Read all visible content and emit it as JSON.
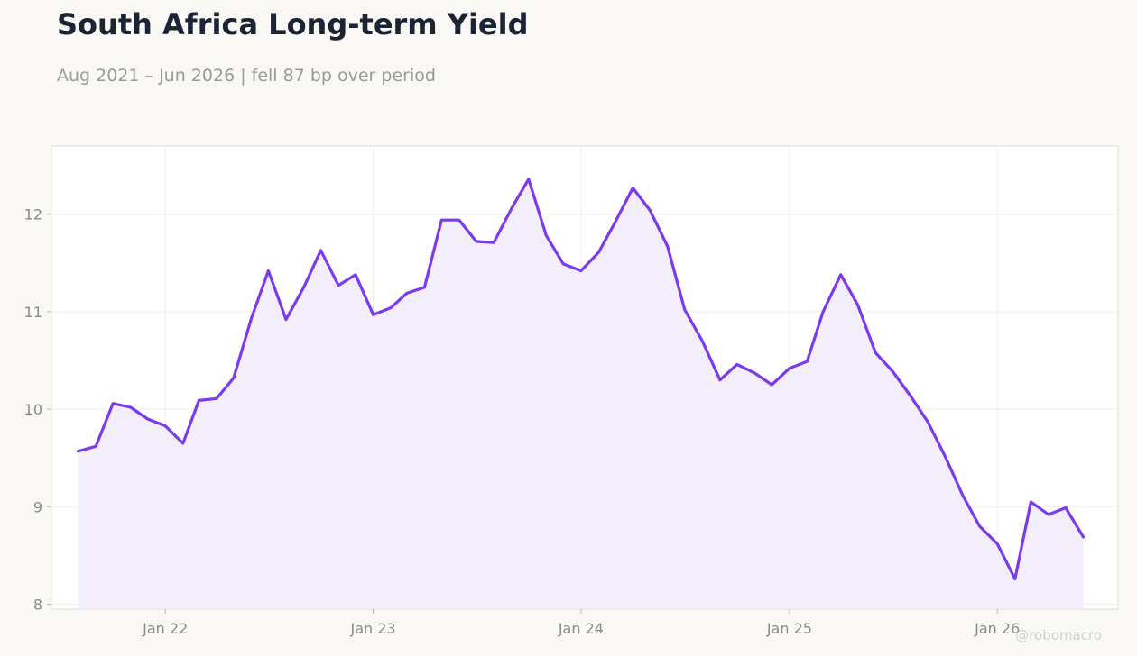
{
  "header": {
    "title": "South Africa Long-term Yield",
    "subtitle": "Aug 2021 – Jun 2026 | fell 87 bp over period"
  },
  "watermark": "@robomacro",
  "colors": {
    "line": "#7c3aed",
    "area": "#f1ecfc",
    "plot_background": "#ffffff",
    "page_background": "#f9f8f5",
    "grid": "#eeeeee",
    "text_muted": "#8a8a8a",
    "title": "#1b2434"
  },
  "chart_data": {
    "type": "area",
    "title": "South Africa Long-term Yield",
    "subtitle": "Aug 2021 – Jun 2026 | fell 87 bp over period",
    "xlabel": "",
    "ylabel": "",
    "grid": true,
    "legend": "none",
    "ylim": [
      7.95,
      12.7
    ],
    "xlim": [
      "2021-06-15",
      "2026-08-01"
    ],
    "y_ticks": [
      8,
      9,
      10,
      11,
      12
    ],
    "x_ticks": [
      {
        "date": "2022-01-01",
        "label": "Jan 22"
      },
      {
        "date": "2023-01-01",
        "label": "Jan 23"
      },
      {
        "date": "2024-01-01",
        "label": "Jan 24"
      },
      {
        "date": "2025-01-01",
        "label": "Jan 25"
      },
      {
        "date": "2026-01-01",
        "label": "Jan 26"
      }
    ],
    "series": [
      {
        "x": [
          "2021-08-01",
          "2021-09-01",
          "2021-10-01",
          "2021-11-01",
          "2021-12-01",
          "2022-01-01",
          "2022-02-01",
          "2022-03-01",
          "2022-04-01",
          "2022-05-01",
          "2022-06-01",
          "2022-07-01",
          "2022-08-01",
          "2022-09-01",
          "2022-10-01",
          "2022-11-01",
          "2022-12-01",
          "2023-01-01",
          "2023-02-01",
          "2023-03-01",
          "2023-04-01",
          "2023-05-01",
          "2023-06-01",
          "2023-07-01",
          "2023-08-01",
          "2023-09-01",
          "2023-10-01",
          "2023-11-01",
          "2023-12-01",
          "2024-01-01",
          "2024-02-01",
          "2024-03-01",
          "2024-04-01",
          "2024-05-01",
          "2024-06-01",
          "2024-07-01",
          "2024-08-01",
          "2024-09-01",
          "2024-10-01",
          "2024-11-01",
          "2024-12-01",
          "2025-01-01",
          "2025-02-01",
          "2025-03-01",
          "2025-04-01",
          "2025-05-01",
          "2025-06-01",
          "2025-07-01",
          "2025-08-01",
          "2025-09-01",
          "2025-10-01",
          "2025-11-01",
          "2025-12-01",
          "2026-01-01",
          "2026-02-01",
          "2026-03-01",
          "2026-04-01",
          "2026-05-01",
          "2026-06-01"
        ],
        "values": [
          9.57,
          9.62,
          10.06,
          10.02,
          9.9,
          9.83,
          9.65,
          10.09,
          10.11,
          10.32,
          10.93,
          11.42,
          10.92,
          11.25,
          11.63,
          11.27,
          11.38,
          10.97,
          11.04,
          11.19,
          11.25,
          11.94,
          11.94,
          11.72,
          11.71,
          12.06,
          12.36,
          11.78,
          11.49,
          11.42,
          11.61,
          11.92,
          12.27,
          12.04,
          11.67,
          11.02,
          10.7,
          10.3,
          10.46,
          10.37,
          10.25,
          10.42,
          10.49,
          11.0,
          11.38,
          11.07,
          10.58,
          10.39,
          10.14,
          9.87,
          9.52,
          9.12,
          8.8,
          8.62,
          8.26,
          9.05,
          8.92,
          8.99,
          8.69
        ]
      }
    ]
  }
}
